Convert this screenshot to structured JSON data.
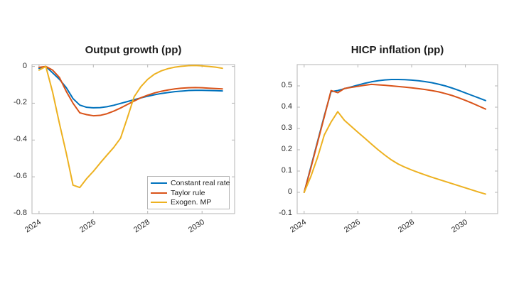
{
  "figure": {
    "background": "#ffffff",
    "axis_color": "#b5b5b5",
    "tick_text_color": "#2b2b2b",
    "title_text_color": "#1d1d1d"
  },
  "chart_data": [
    {
      "type": "line",
      "title": "Output growth (pp)",
      "xlabel": "",
      "ylabel": "",
      "grid": false,
      "xlim": [
        2023.74,
        2031.2
      ],
      "ylim": [
        -0.8,
        0.01
      ],
      "xticks": [
        2024,
        2026,
        2028,
        2030
      ],
      "xtick_labels": [
        "2024",
        "2026",
        "2028",
        "2030"
      ],
      "yticks": [
        0,
        -0.2,
        -0.4,
        -0.6,
        -0.8
      ],
      "ytick_labels": [
        "0",
        "-0.2",
        "-0.4",
        "-0.6",
        "-0.8"
      ],
      "legend": {
        "position": "bottom-right",
        "entries": [
          "Constant real rate",
          "Taylor rule",
          "Exogen. MP"
        ]
      },
      "x": [
        2024,
        2024.25,
        2024.5,
        2024.75,
        2025,
        2025.25,
        2025.5,
        2025.75,
        2026,
        2026.25,
        2026.5,
        2026.75,
        2027,
        2027.25,
        2027.5,
        2027.75,
        2028,
        2028.25,
        2028.5,
        2028.75,
        2029,
        2029.25,
        2029.5,
        2029.75,
        2030,
        2030.25,
        2030.5,
        2030.75
      ],
      "series": [
        {
          "name": "Constant real rate",
          "color": "#0072BD",
          "values": [
            -0.01,
            0,
            -0.035,
            -0.07,
            -0.115,
            -0.175,
            -0.21,
            -0.222,
            -0.225,
            -0.224,
            -0.219,
            -0.211,
            -0.201,
            -0.191,
            -0.181,
            -0.171,
            -0.162,
            -0.154,
            -0.147,
            -0.142,
            -0.137,
            -0.134,
            -0.131,
            -0.13,
            -0.13,
            -0.131,
            -0.132,
            -0.133
          ]
        },
        {
          "name": "Taylor rule",
          "color": "#D95319",
          "values": [
            -0.005,
            0,
            -0.02,
            -0.06,
            -0.135,
            -0.2,
            -0.252,
            -0.262,
            -0.268,
            -0.266,
            -0.257,
            -0.243,
            -0.226,
            -0.207,
            -0.188,
            -0.17,
            -0.156,
            -0.144,
            -0.135,
            -0.128,
            -0.122,
            -0.118,
            -0.116,
            -0.115,
            -0.116,
            -0.118,
            -0.12,
            -0.122
          ]
        },
        {
          "name": "Exogen. MP",
          "color": "#EDB120",
          "values": [
            -0.02,
            0,
            -0.14,
            -0.31,
            -0.47,
            -0.645,
            -0.658,
            -0.61,
            -0.57,
            -0.525,
            -0.482,
            -0.44,
            -0.39,
            -0.28,
            -0.165,
            -0.11,
            -0.07,
            -0.042,
            -0.024,
            -0.012,
            -0.004,
            0.001,
            0.004,
            0.005,
            0.003,
            0,
            -0.004,
            -0.01
          ]
        }
      ]
    },
    {
      "type": "line",
      "title": "HICP inflation (pp)",
      "xlabel": "",
      "ylabel": "",
      "grid": false,
      "xlim": [
        2023.74,
        2031.2
      ],
      "ylim": [
        -0.1,
        0.6
      ],
      "xticks": [
        2024,
        2026,
        2028,
        2030
      ],
      "xtick_labels": [
        "2024",
        "2026",
        "2028",
        "2030"
      ],
      "yticks": [
        0.5,
        0.4,
        0.3,
        0.2,
        0.1,
        0,
        -0.1
      ],
      "ytick_labels": [
        "0.5",
        "0.4",
        "0.3",
        "0.2",
        "0.1",
        "0",
        "-0.1"
      ],
      "legend": null,
      "x": [
        2024,
        2024.25,
        2024.5,
        2024.75,
        2025,
        2025.25,
        2025.5,
        2025.75,
        2026,
        2026.25,
        2026.5,
        2026.75,
        2027,
        2027.25,
        2027.5,
        2027.75,
        2028,
        2028.25,
        2028.5,
        2028.75,
        2029,
        2029.25,
        2029.5,
        2029.75,
        2030,
        2030.25,
        2030.5,
        2030.75
      ],
      "series": [
        {
          "name": "Constant real rate",
          "color": "#0072BD",
          "values": [
            0,
            0.12,
            0.24,
            0.36,
            0.473,
            0.478,
            0.487,
            0.495,
            0.504,
            0.512,
            0.519,
            0.524,
            0.528,
            0.53,
            0.53,
            0.529,
            0.527,
            0.524,
            0.52,
            0.515,
            0.508,
            0.5,
            0.49,
            0.479,
            0.467,
            0.455,
            0.443,
            0.431
          ]
        },
        {
          "name": "Taylor rule",
          "color": "#D95319",
          "values": [
            0,
            0.115,
            0.235,
            0.355,
            0.478,
            0.468,
            0.488,
            0.493,
            0.498,
            0.503,
            0.507,
            0.505,
            0.503,
            0.5,
            0.497,
            0.494,
            0.491,
            0.487,
            0.483,
            0.478,
            0.472,
            0.464,
            0.455,
            0.444,
            0.432,
            0.419,
            0.405,
            0.391
          ]
        },
        {
          "name": "Exogen. MP",
          "color": "#EDB120",
          "values": [
            0,
            0.075,
            0.165,
            0.27,
            0.33,
            0.379,
            0.338,
            0.31,
            0.282,
            0.255,
            0.227,
            0.2,
            0.175,
            0.152,
            0.133,
            0.118,
            0.105,
            0.093,
            0.082,
            0.071,
            0.061,
            0.051,
            0.041,
            0.031,
            0.021,
            0.011,
            0.001,
            -0.008
          ]
        }
      ]
    }
  ]
}
